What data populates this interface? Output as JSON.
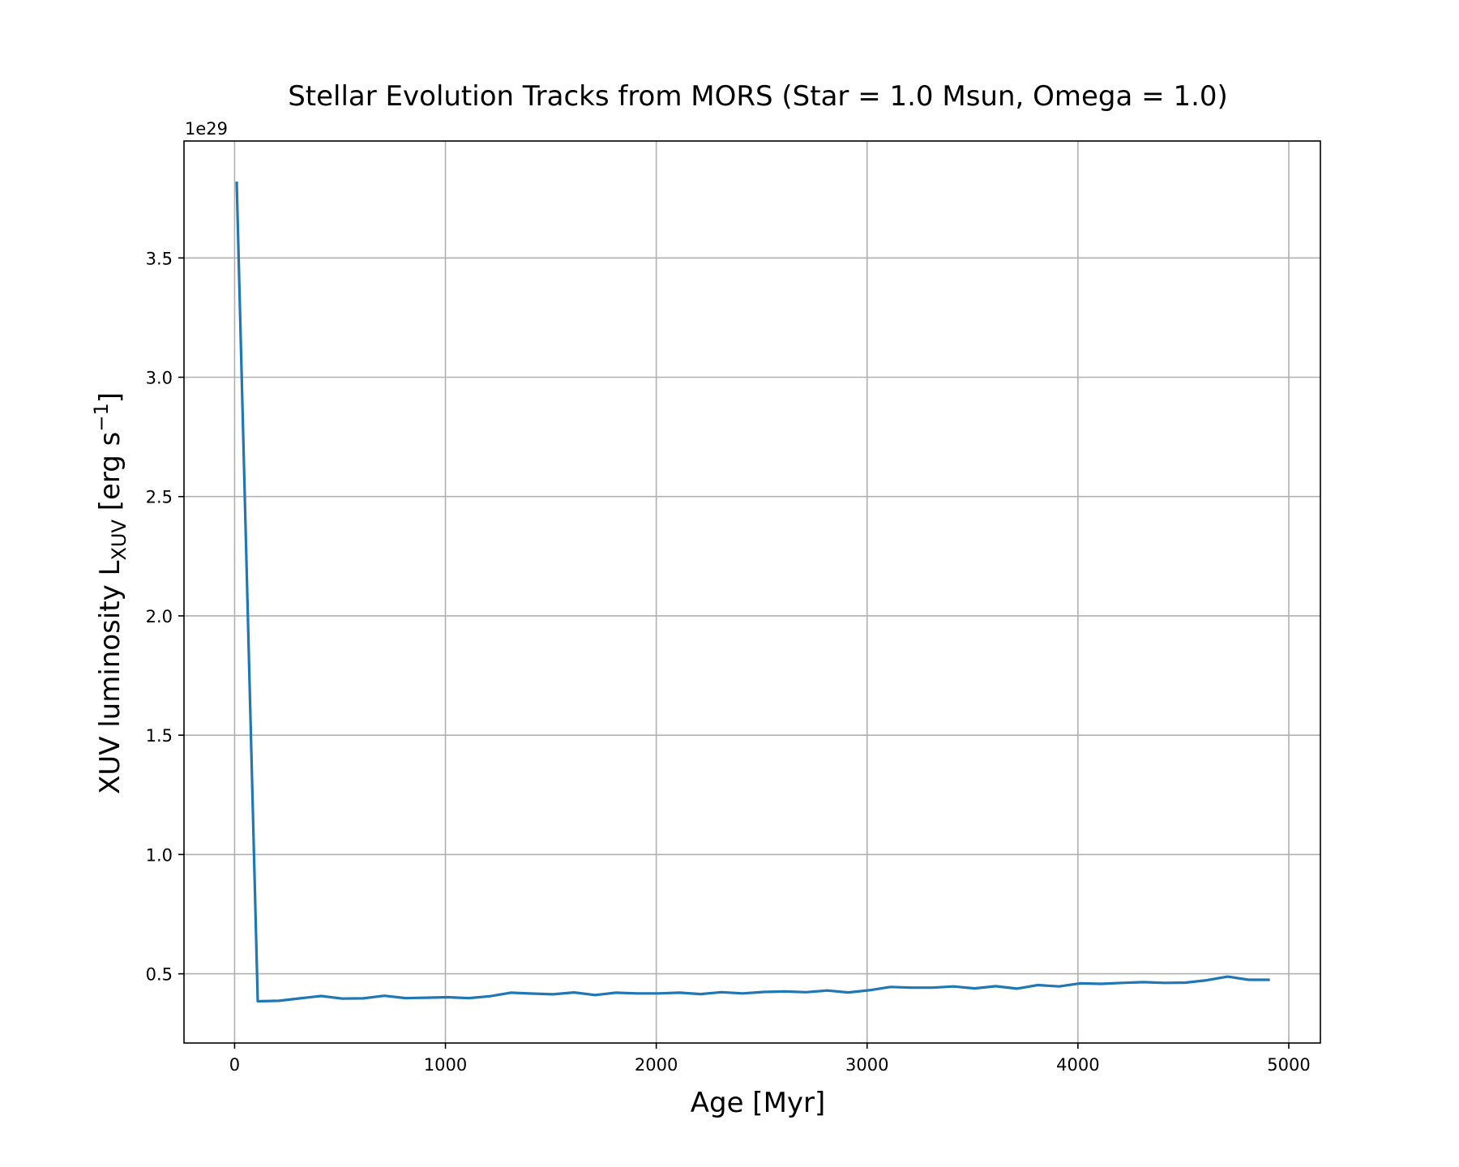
{
  "chart_data": {
    "type": "line",
    "title": "Stellar Evolution Tracks from MORS (Star = 1.0 Msun, Omega = 1.0)",
    "xlabel": "Age [Myr]",
    "ylabel": {
      "main": "XUV luminosity L",
      "subscript": "XUV",
      "unit_prefix": " [erg s",
      "superscript": "−1",
      "unit_suffix": "]"
    },
    "y_offset_label": "1e29",
    "xlim": [
      -240,
      5150
    ],
    "ylim": [
      0.21,
      3.99
    ],
    "y_scale_factor": 1e+29,
    "x_ticks": [
      0,
      1000,
      2000,
      3000,
      4000,
      5000
    ],
    "x_tick_labels": [
      "0",
      "1000",
      "2000",
      "3000",
      "4000",
      "5000"
    ],
    "y_ticks": [
      0.5,
      1.0,
      1.5,
      2.0,
      2.5,
      3.0,
      3.5
    ],
    "y_tick_labels": [
      "0.5",
      "1.0",
      "1.5",
      "2.0",
      "2.5",
      "3.0",
      "3.5"
    ],
    "grid": true,
    "line_color": "#1f77b4",
    "series": [
      {
        "x": [
          10,
          110,
          210,
          310,
          410,
          510,
          610,
          710,
          810,
          910,
          1010,
          1110,
          1210,
          1310,
          1410,
          1510,
          1610,
          1710,
          1810,
          1910,
          2010,
          2110,
          2210,
          2310,
          2410,
          2510,
          2610,
          2710,
          2810,
          2910,
          3010,
          3110,
          3210,
          3310,
          3410,
          3510,
          3610,
          3710,
          3810,
          3910,
          4010,
          4110,
          4210,
          4310,
          4410,
          4510,
          4610,
          4710,
          4810,
          4910
        ],
        "values": [
          3.82,
          0.385,
          0.387,
          0.397,
          0.407,
          0.396,
          0.397,
          0.408,
          0.398,
          0.4,
          0.402,
          0.398,
          0.406,
          0.421,
          0.417,
          0.414,
          0.422,
          0.411,
          0.421,
          0.418,
          0.418,
          0.421,
          0.415,
          0.423,
          0.418,
          0.424,
          0.426,
          0.423,
          0.43,
          0.422,
          0.431,
          0.445,
          0.442,
          0.442,
          0.447,
          0.439,
          0.448,
          0.438,
          0.453,
          0.447,
          0.46,
          0.458,
          0.462,
          0.465,
          0.462,
          0.463,
          0.473,
          0.488,
          0.475,
          0.475
        ]
      }
    ]
  }
}
